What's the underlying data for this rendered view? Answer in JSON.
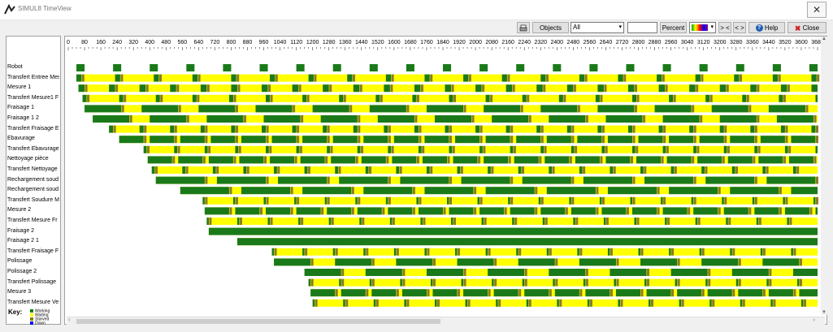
{
  "window": {
    "title": "SIMUL8 TimeView",
    "close_glyph": "✕"
  },
  "toolbar": {
    "objects_label": "Objects",
    "filter_value": "All",
    "search_value": "",
    "percent_label": "Percent",
    "prev_label": "> <",
    "next_label": "< >",
    "help_label": "Help",
    "close_label": "Close"
  },
  "key": {
    "title": "Key:",
    "items": [
      {
        "label": "Working",
        "color": "#008000"
      },
      {
        "label": "Waiting",
        "color": "#ffff00"
      },
      {
        "label": "Starved",
        "color": "#808000"
      },
      {
        "label": "Down",
        "color": "#0000ff"
      }
    ]
  },
  "colors": {
    "working": "#1a7a1a",
    "waiting": "#ffff00",
    "starved": "#8a7a2a"
  },
  "chart_data": {
    "type": "gantt",
    "x_ticks": [
      0,
      80,
      160,
      240,
      320,
      400,
      480,
      560,
      640,
      720,
      800,
      880,
      960,
      1040,
      1120,
      1200,
      1280,
      1360,
      1440,
      1520,
      1600,
      1680,
      1760,
      1840,
      1920,
      2000,
      2080,
      2160,
      2240,
      2320,
      2400,
      2480,
      2560,
      2640,
      2720,
      2800,
      2880,
      2960,
      3040,
      3120,
      3200,
      3280,
      3360,
      3440,
      3520,
      3600,
      3680
    ],
    "xlim": [
      0,
      3680
    ],
    "rows": [
      {
        "label": "Robot",
        "start": 40,
        "work": 40,
        "period": 180
      },
      {
        "label": "Transfert Entree Mes",
        "start": 40,
        "work": 25,
        "period": 190
      },
      {
        "label": "Mesure 1",
        "start": 50,
        "work": 30,
        "period": 150
      },
      {
        "label": "Transfert Mesure1 F",
        "start": 70,
        "work": 20,
        "period": 180
      },
      {
        "label": "Fraisage 1",
        "start": 80,
        "work": 180,
        "period": 280
      },
      {
        "label": "Fraisage 1 2",
        "start": 120,
        "work": 180,
        "period": 280
      },
      {
        "label": "Transfert Fraisage E",
        "start": 200,
        "work": 20,
        "period": 150
      },
      {
        "label": "Ebavurage",
        "start": 250,
        "work": 120,
        "period": 150
      },
      {
        "label": "Transfert Ebavurage",
        "start": 370,
        "work": 15,
        "period": 150
      },
      {
        "label": "Nettoyage pièce",
        "start": 390,
        "work": 120,
        "period": 150
      },
      {
        "label": "Transfert Nettoyage",
        "start": 410,
        "work": 15,
        "period": 150
      },
      {
        "label": "Rechargement soud",
        "start": 430,
        "work": 240,
        "period": 300
      },
      {
        "label": "Rechargement soud",
        "start": 550,
        "work": 240,
        "period": 300
      },
      {
        "label": "Transfert Soudure M",
        "start": 660,
        "work": 10,
        "period": 150
      },
      {
        "label": "Mesure 2",
        "start": 670,
        "work": 120,
        "period": 150
      },
      {
        "label": "Transfert Mesure Fr",
        "start": 680,
        "work": 10,
        "period": 150
      },
      {
        "label": "Fraisage 2",
        "start": 690,
        "work": 3000,
        "period": 3000
      },
      {
        "label": "Fraisage 2 1",
        "start": 830,
        "work": 2900,
        "period": 3000
      },
      {
        "label": "Transfert Fraisage F",
        "start": 1000,
        "work": 10,
        "period": 150
      },
      {
        "label": "Polissage",
        "start": 1010,
        "work": 180,
        "period": 300
      },
      {
        "label": "Polissage 2",
        "start": 1160,
        "work": 180,
        "period": 300
      },
      {
        "label": "Transfert Polissage",
        "start": 1180,
        "work": 10,
        "period": 150
      },
      {
        "label": "Mesure 3",
        "start": 1190,
        "work": 120,
        "period": 150
      },
      {
        "label": "Transfert Mesure Ve",
        "start": 1200,
        "work": 10,
        "period": 150
      }
    ]
  }
}
